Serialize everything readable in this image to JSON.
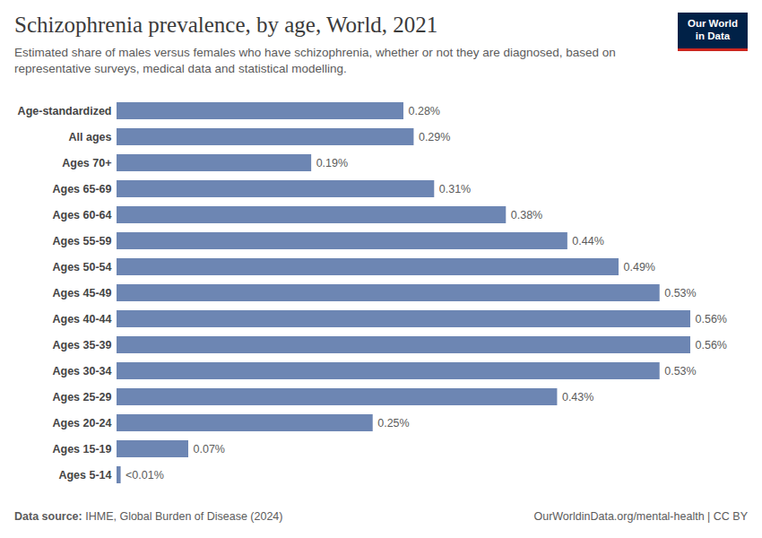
{
  "chart_data": {
    "type": "bar",
    "title": "Schizophrenia prevalence, by age, World, 2021",
    "subtitle": "Estimated share of males versus females who have schizophrenia, whether or not they are diagnosed, based on representative surveys, medical data and statistical modelling.",
    "logo": "Our World in Data",
    "source_label": "Data source:",
    "source": "IHME, Global Burden of Disease (2024)",
    "note": "OurWorldinData.org/mental-health | CC BY",
    "orientation": "horizontal",
    "categories": [
      "Age-standardized",
      "All ages",
      "Ages 70+",
      "Ages 65-69",
      "Ages 60-64",
      "Ages 55-59",
      "Ages 50-54",
      "Ages 45-49",
      "Ages 40-44",
      "Ages 35-39",
      "Ages 30-34",
      "Ages 25-29",
      "Ages 20-24",
      "Ages 15-19",
      "Ages 5-14"
    ],
    "values": [
      0.28,
      0.29,
      0.19,
      0.31,
      0.38,
      0.44,
      0.49,
      0.53,
      0.56,
      0.56,
      0.53,
      0.43,
      0.25,
      0.07,
      0.004
    ],
    "value_labels": [
      "0.28%",
      "0.29%",
      "0.19%",
      "0.31%",
      "0.38%",
      "0.44%",
      "0.49%",
      "0.53%",
      "0.56%",
      "0.56%",
      "0.53%",
      "0.43%",
      "0.25%",
      "0.07%",
      "<0.01%"
    ],
    "color": "#6d86b3",
    "data_labels": true,
    "tick_labels": "y",
    "grid": false
  }
}
